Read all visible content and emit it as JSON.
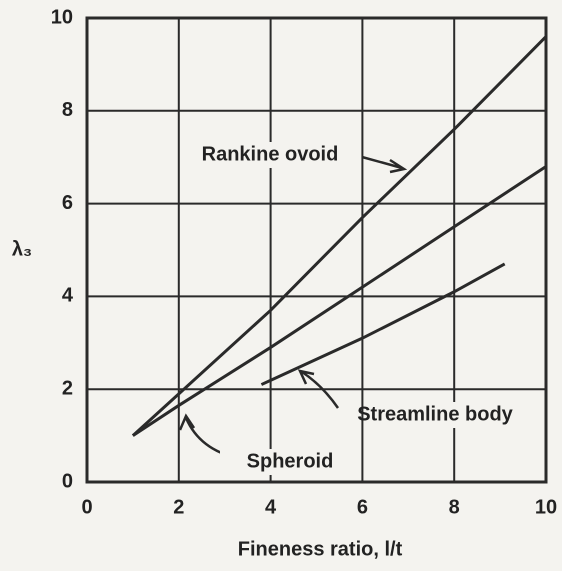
{
  "chart_data": {
    "type": "line",
    "xlabel": "Fineness ratio, l/t",
    "ylabel": "λ₃",
    "xlim": [
      0,
      10
    ],
    "ylim": [
      0,
      10
    ],
    "xticks": [
      0,
      2,
      4,
      6,
      8,
      10
    ],
    "yticks": [
      0,
      2,
      4,
      6,
      8,
      10
    ],
    "grid": true,
    "series": [
      {
        "name": "Rankine ovoid",
        "color": "#2a2a2a",
        "x": [
          1,
          2,
          4,
          6,
          8,
          10
        ],
        "values": [
          1,
          1.9,
          3.7,
          5.7,
          7.6,
          9.6
        ]
      },
      {
        "name": "Spheroid",
        "color": "#2a2a2a",
        "x": [
          1,
          2,
          4,
          6,
          8,
          10
        ],
        "values": [
          1,
          1.65,
          2.9,
          4.2,
          5.5,
          6.8
        ]
      },
      {
        "name": "Streamline body",
        "color": "#2a2a2a",
        "x": [
          3.8,
          6,
          8,
          9.1
        ],
        "values": [
          2.1,
          3.1,
          4.1,
          4.7
        ]
      }
    ]
  }
}
